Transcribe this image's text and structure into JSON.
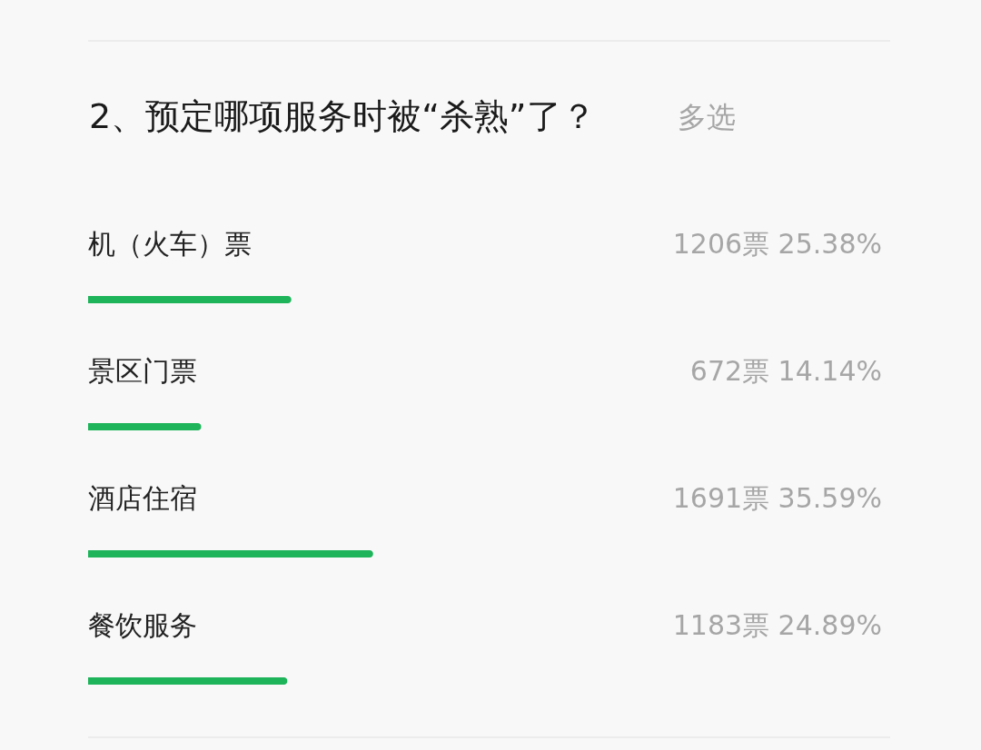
{
  "chart_data": {
    "type": "bar",
    "orientation": "horizontal",
    "title": "2、预定哪项服务时被“杀熟”了？",
    "subtitle": "多选",
    "categories": [
      "机（火车）票",
      "景区门票",
      "酒店住宿",
      "餐饮服务"
    ],
    "values": [
      25.38,
      14.14,
      35.59,
      24.89
    ],
    "value_labels": [
      "1206票 25.38%",
      "672票 14.14%",
      "1691票 35.59%",
      "1183票 24.89%"
    ],
    "color": "#1db45a",
    "xlim": [
      0,
      100
    ],
    "tick_labels": false
  }
}
